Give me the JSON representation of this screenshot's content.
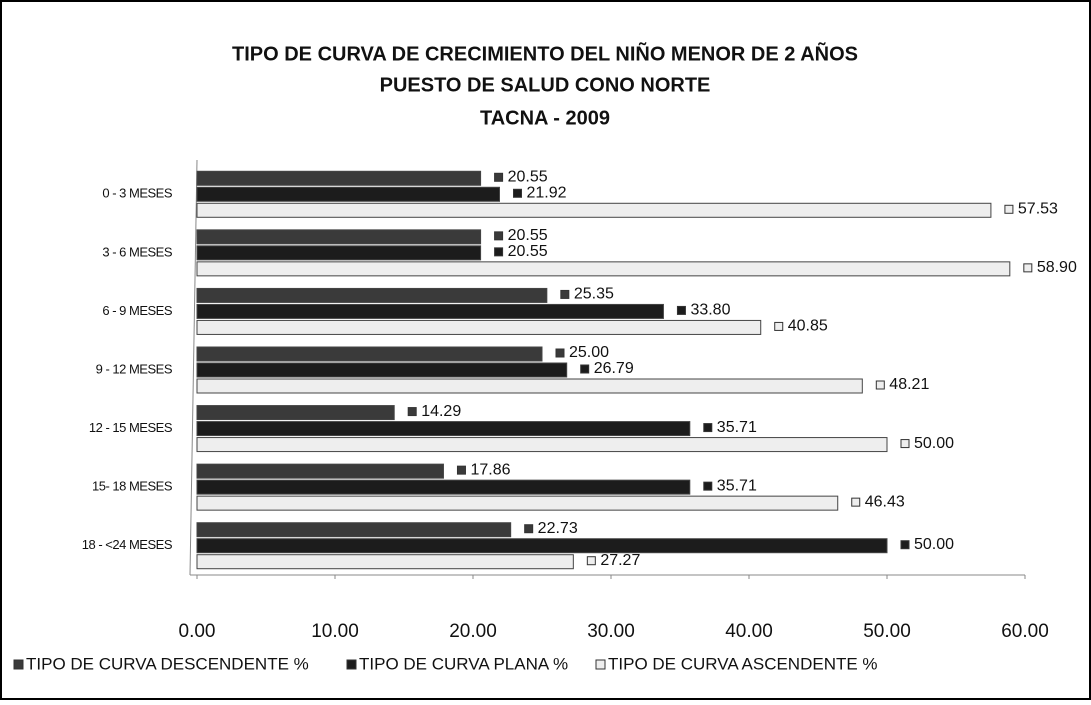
{
  "chart_data": {
    "type": "bar",
    "orientation": "horizontal",
    "title": "TIPO DE CURVA DE CRECIMIENTO DEL NIÑO MENOR DE 2 AÑOS",
    "subtitle": [
      "PUESTO DE SALUD CONO NORTE",
      "TACNA - 2009"
    ],
    "categories": [
      "0 - 3 MESES",
      "3 - 6 MESES",
      "6 - 9 MESES",
      "9 - 12 MESES",
      "12 - 15 MESES",
      "15- 18 MESES",
      "18 - <24 MESES"
    ],
    "series": [
      {
        "name": "TIPO DE CURVA DESCENDENTE %",
        "color": "#3a3a3a",
        "values": [
          20.55,
          20.55,
          25.35,
          25,
          14.29,
          17.86,
          22.73
        ],
        "value_labels": [
          "20.55",
          "20.55",
          "25.35",
          "25.00",
          "14.29",
          "17.86",
          "22.73"
        ]
      },
      {
        "name": "TIPO DE CURVA PLANA %",
        "color": "#1c1c1c",
        "values": [
          21.92,
          20.55,
          33.8,
          26.79,
          35.71,
          35.71,
          50
        ],
        "value_labels": [
          "21.92",
          "20.55",
          "33.80",
          "26.79",
          "35.71",
          "35.71",
          "50.00"
        ]
      },
      {
        "name": "TIPO DE CURVA ASCENDENTE %",
        "color": "#eeeeee",
        "values": [
          57.53,
          58.9,
          40.85,
          48.21,
          50,
          46.43,
          27.27
        ],
        "value_labels": [
          "57.53",
          "58.90",
          "40.85",
          "48.21",
          "50.00",
          "46.43",
          "27.27"
        ]
      }
    ],
    "xlim": [
      0,
      60
    ],
    "xticks": [
      {
        "value": 0,
        "label": "0.00"
      },
      {
        "value": 10,
        "label": "10.00"
      },
      {
        "value": 20,
        "label": "20.00"
      },
      {
        "value": 30,
        "label": "30.00"
      },
      {
        "value": 40,
        "label": "40.00"
      },
      {
        "value": 50,
        "label": "50.00"
      },
      {
        "value": 60,
        "label": "60.00"
      }
    ],
    "legend": "bottom"
  }
}
